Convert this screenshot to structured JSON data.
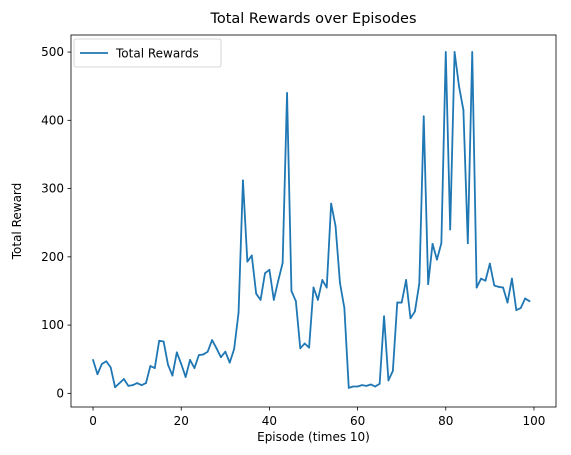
{
  "chart_data": {
    "type": "line",
    "title": "Total Rewards over Episodes",
    "xlabel": "Episode (times 10)",
    "ylabel": "Total Reward",
    "xlim": [
      -5,
      105
    ],
    "ylim": [
      -20,
      525
    ],
    "xticks": [
      0,
      20,
      40,
      60,
      80,
      100
    ],
    "yticks": [
      0,
      100,
      200,
      300,
      400,
      500
    ],
    "grid": false,
    "legend_position": "top-left",
    "series": [
      {
        "name": "Total Rewards",
        "color": "#1f77b4",
        "x": [
          0,
          1,
          2,
          3,
          4,
          5,
          6,
          7,
          8,
          9,
          10,
          11,
          12,
          13,
          14,
          15,
          16,
          17,
          18,
          19,
          20,
          21,
          22,
          23,
          24,
          25,
          26,
          27,
          28,
          29,
          30,
          31,
          32,
          33,
          34,
          35,
          36,
          37,
          38,
          39,
          40,
          41,
          42,
          43,
          44,
          45,
          46,
          47,
          48,
          49,
          50,
          51,
          52,
          53,
          54,
          55,
          56,
          57,
          58,
          59,
          60,
          61,
          62,
          63,
          64,
          65,
          66,
          67,
          68,
          69,
          70,
          71,
          72,
          73,
          74,
          75,
          76,
          77,
          78,
          79,
          80,
          81,
          82,
          83,
          84,
          85,
          86,
          87,
          88,
          89,
          90,
          91,
          92,
          93,
          94,
          95,
          96,
          97,
          98,
          99
        ],
        "y": [
          49,
          28,
          43,
          47,
          38,
          9,
          15,
          21,
          11,
          12,
          15,
          12,
          15,
          40,
          37,
          77,
          76,
          42,
          26,
          60,
          43,
          24,
          49,
          37,
          56,
          57,
          61,
          78,
          66,
          53,
          61,
          45,
          65,
          118,
          312,
          193,
          202,
          146,
          137,
          176,
          181,
          137,
          165,
          191,
          440,
          150,
          135,
          66,
          73,
          67,
          155,
          137,
          166,
          155,
          278,
          245,
          162,
          125,
          8,
          10,
          10,
          12,
          11,
          13,
          10,
          14,
          113,
          19,
          33,
          133,
          133,
          166,
          110,
          120,
          161,
          406,
          160,
          219,
          196,
          220,
          500,
          240,
          500,
          450,
          415,
          220,
          500,
          155,
          168,
          165,
          190,
          158,
          156,
          155,
          133,
          168,
          122,
          125,
          139,
          135
        ]
      }
    ]
  }
}
